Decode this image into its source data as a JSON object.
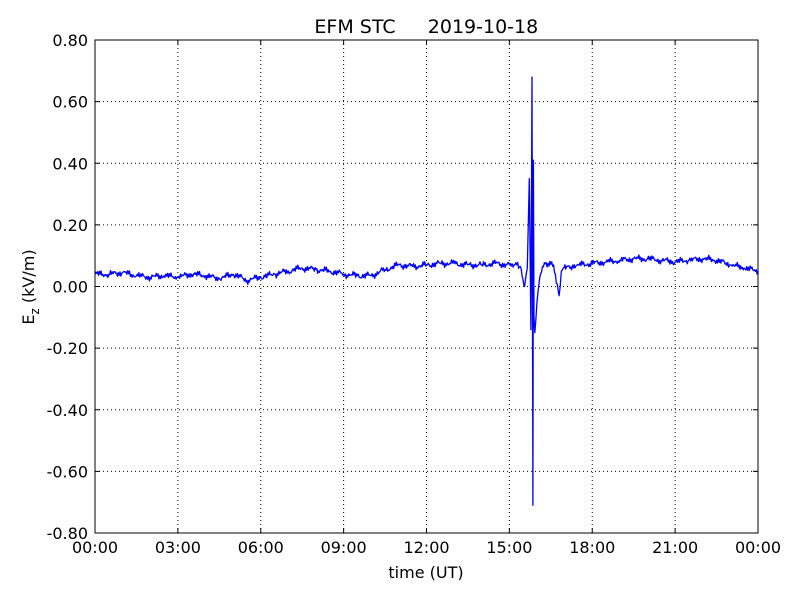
{
  "chart_data": {
    "type": "line",
    "title": "EFM STC",
    "date": "2019-10-18",
    "xlabel": "time (UT)",
    "ylabel": {
      "main": "E",
      "sub": "z",
      "unit": " (kV/m)"
    },
    "x_ticks": [
      "00:00",
      "03:00",
      "06:00",
      "09:00",
      "12:00",
      "15:00",
      "18:00",
      "21:00",
      "00:00"
    ],
    "y_ticks": [
      "0.80",
      "0.60",
      "0.40",
      "0.20",
      "0.00",
      "-0.20",
      "-0.40",
      "-0.60",
      "-0.80"
    ],
    "xlim_hours": [
      0,
      24
    ],
    "ylim": [
      -0.8,
      0.8
    ],
    "grid": true,
    "line_color": "#0000ff",
    "series": [
      {
        "x_hours": [
          0,
          0.5,
          1,
          1.5,
          2,
          2.5,
          3,
          3.5,
          4,
          4.5,
          5,
          5.5,
          6,
          6.5,
          7,
          7.5,
          8,
          8.5,
          9,
          9.5,
          10,
          10.5,
          11,
          11.5,
          12,
          12.5,
          13,
          13.5,
          14,
          14.5,
          15,
          15.2,
          15.4,
          15.55,
          15.65,
          15.72,
          15.78,
          15.82,
          15.85,
          15.87,
          15.89,
          15.92,
          15.95,
          16.0,
          16.1,
          16.2,
          16.4,
          16.6,
          16.8,
          16.88,
          16.95,
          17.1,
          17.5,
          18,
          18.5,
          19,
          19.5,
          20,
          20.5,
          21,
          21.5,
          22,
          22.5,
          23,
          23.5,
          24
        ],
        "y_kVm": [
          0.04,
          0.04,
          0.045,
          0.035,
          0.03,
          0.035,
          0.03,
          0.04,
          0.035,
          0.025,
          0.04,
          0.02,
          0.03,
          0.04,
          0.05,
          0.06,
          0.055,
          0.05,
          0.04,
          0.035,
          0.035,
          0.055,
          0.07,
          0.065,
          0.07,
          0.075,
          0.075,
          0.07,
          0.07,
          0.075,
          0.07,
          0.07,
          0.065,
          0.0,
          0.06,
          0.35,
          -0.14,
          0.68,
          -0.71,
          0.41,
          -0.1,
          -0.15,
          -0.12,
          -0.05,
          0.03,
          0.065,
          0.075,
          0.07,
          -0.03,
          0.05,
          0.06,
          0.065,
          0.07,
          0.075,
          0.08,
          0.085,
          0.09,
          0.09,
          0.085,
          0.08,
          0.085,
          0.09,
          0.085,
          0.07,
          0.06,
          0.05
        ]
      }
    ]
  }
}
